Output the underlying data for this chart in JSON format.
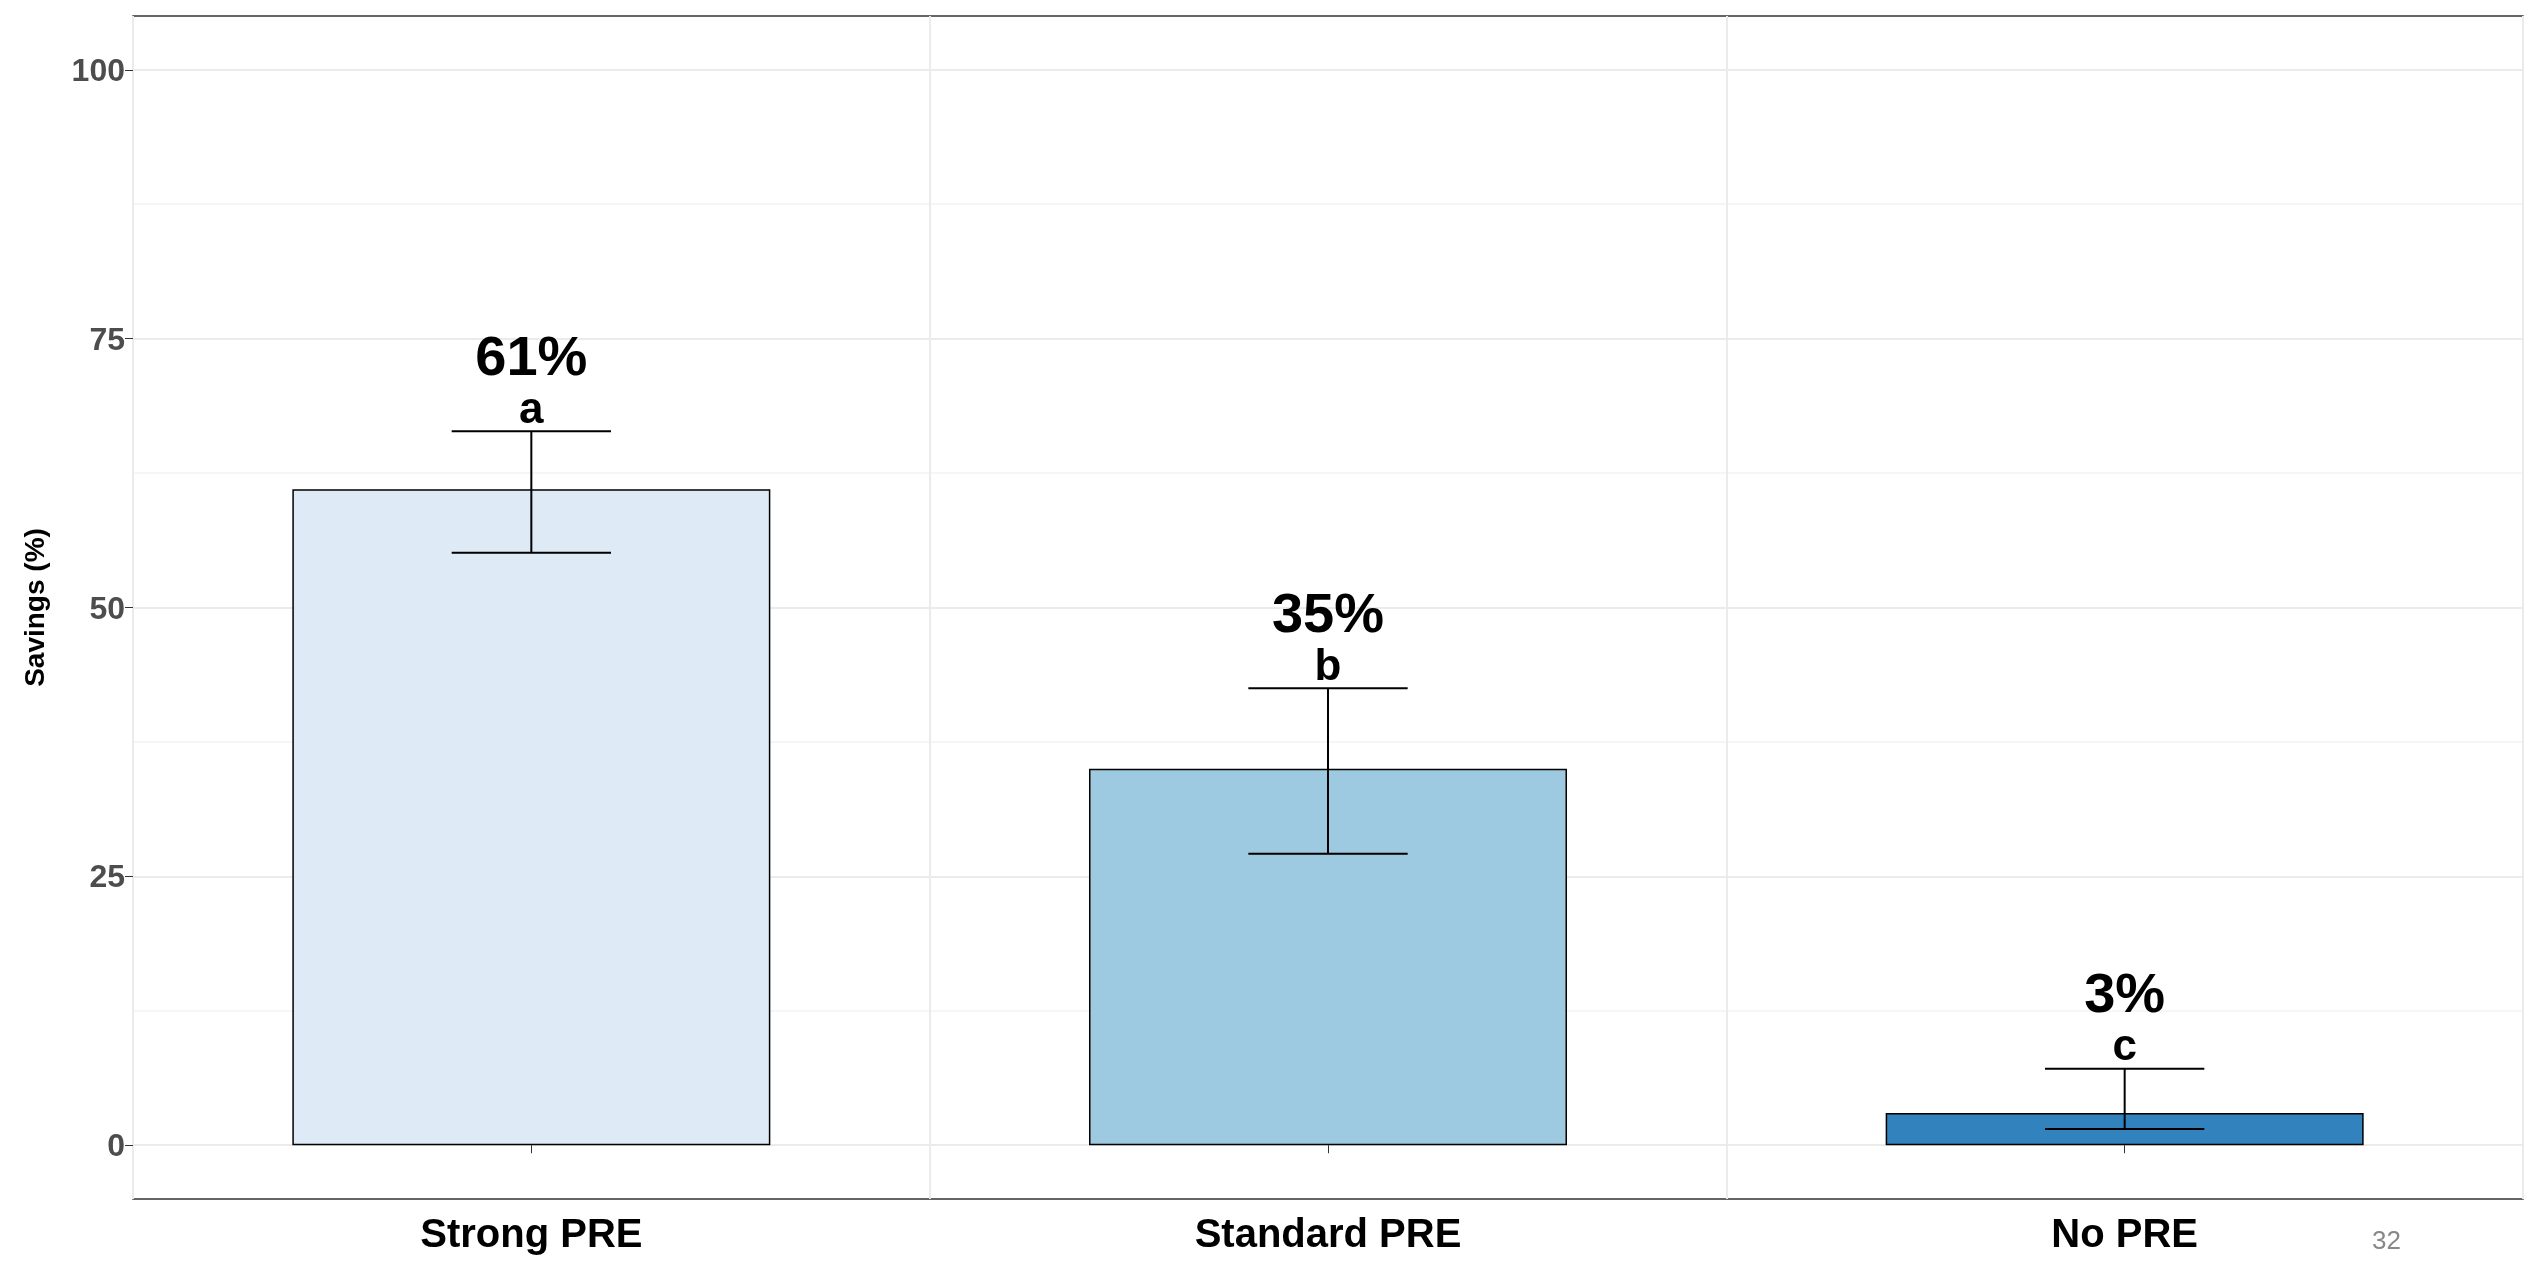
{
  "chart_data": {
    "type": "bar",
    "ylabel": "Savings (%)",
    "categories": [
      "Strong PRE",
      "Standard PRE",
      "No PRE"
    ],
    "values": [
      61,
      35,
      3
    ],
    "colors": [
      "#deebf7",
      "#9ecae1",
      "#3182bd"
    ],
    "errors": [
      [
        55.1,
        66.4
      ],
      [
        27.1,
        42.5
      ],
      [
        1.5,
        7.1
      ]
    ],
    "value_labels": [
      "61%",
      "35%",
      "3%"
    ],
    "annotations": [
      {
        "text": "a",
        "x": "Strong PRE",
        "y": 66.4
      },
      {
        "text": "b",
        "x": "Standard PRE",
        "y": 42.5
      },
      {
        "text": "c",
        "x": "No PRE",
        "y": 7.1
      },
      "32"
    ],
    "ylim": [
      -5,
      105
    ],
    "yticks": [
      0,
      25,
      50,
      75,
      100
    ],
    "grid": true
  }
}
